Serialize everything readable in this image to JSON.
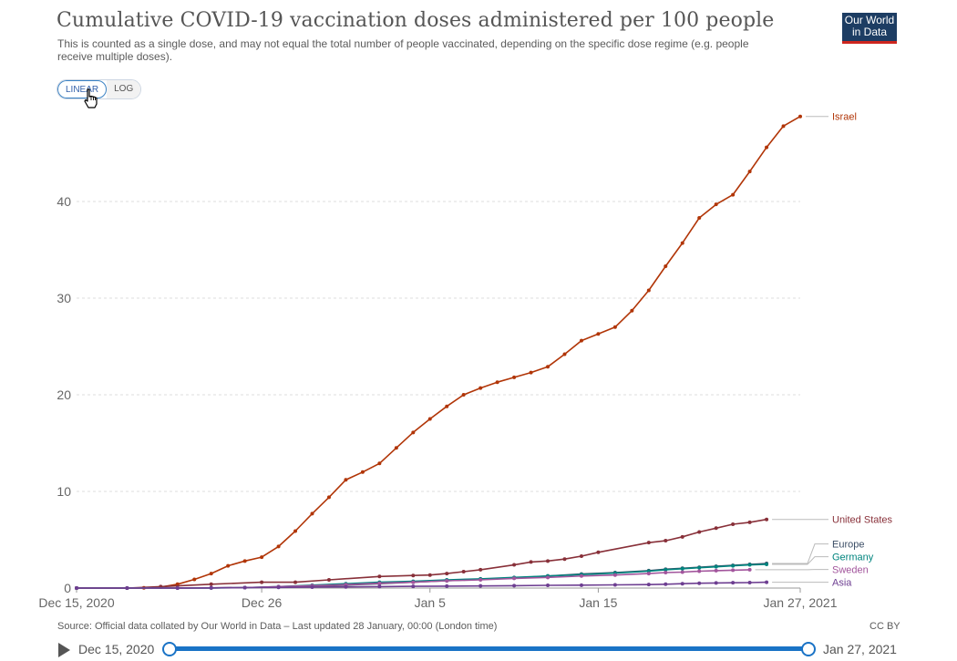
{
  "header": {
    "title": "Cumulative COVID-19 vaccination doses administered per 100 people",
    "subtitle": "This is counted as a single dose, and may not equal the total number of people vaccinated, depending on the specific dose regime (e.g. people receive multiple doses).",
    "logo_line1": "Our World",
    "logo_line2": "in Data",
    "logo_bg": "#1d3d63",
    "logo_accent": "#ce261e"
  },
  "controls": {
    "linear_label": "LINEAR",
    "log_label": "LOG",
    "active_scale": "linear"
  },
  "footer": {
    "source": "Source: Official data collated by Our World in Data – Last updated 28 January, 00:00 (London time)",
    "license": "CC BY"
  },
  "timeline": {
    "start_label": "Dec 15, 2020",
    "end_label": "Jan 27, 2021",
    "play_icon": "play-icon",
    "accent": "#1a73c6"
  },
  "chart_data": {
    "type": "line",
    "title": "Cumulative COVID-19 vaccination doses administered per 100 people",
    "x_start": "2020-12-15",
    "x_end": "2021-01-27",
    "xlim": [
      0,
      43
    ],
    "ylim": [
      0,
      50
    ],
    "y_ticks": [
      0,
      10,
      20,
      30,
      40
    ],
    "x_ticks": [
      {
        "x": 0,
        "label": "Dec 15, 2020"
      },
      {
        "x": 11,
        "label": "Dec 26"
      },
      {
        "x": 21,
        "label": "Jan 5"
      },
      {
        "x": 31,
        "label": "Jan 15"
      },
      {
        "x": 43,
        "label": "Jan 27, 2021"
      }
    ],
    "grid": true,
    "legend": "right, labels at line ends",
    "series": [
      {
        "name": "Israel",
        "color": "#b13507",
        "points": [
          [
            0,
            0
          ],
          [
            3,
            0
          ],
          [
            4,
            0.02
          ],
          [
            5,
            0.1
          ],
          [
            6,
            0.4
          ],
          [
            7,
            0.9
          ],
          [
            8,
            1.5
          ],
          [
            9,
            2.3
          ],
          [
            10,
            2.8
          ],
          [
            11,
            3.2
          ],
          [
            12,
            4.3
          ],
          [
            13,
            5.9
          ],
          [
            14,
            7.7
          ],
          [
            15,
            9.4
          ],
          [
            16,
            11.2
          ],
          [
            17,
            12
          ],
          [
            18,
            12.9
          ],
          [
            19,
            14.5
          ],
          [
            20,
            16.1
          ],
          [
            21,
            17.5
          ],
          [
            22,
            18.8
          ],
          [
            23,
            20
          ],
          [
            24,
            20.7
          ],
          [
            25,
            21.3
          ],
          [
            26,
            21.8
          ],
          [
            27,
            22.3
          ],
          [
            28,
            22.9
          ],
          [
            29,
            24.2
          ],
          [
            30,
            25.6
          ],
          [
            31,
            26.3
          ],
          [
            32,
            27
          ],
          [
            33,
            28.7
          ],
          [
            34,
            30.8
          ],
          [
            35,
            33.3
          ],
          [
            36,
            35.7
          ],
          [
            37,
            38.3
          ],
          [
            38,
            39.7
          ],
          [
            39,
            40.7
          ],
          [
            40,
            43.1
          ],
          [
            41,
            45.6
          ],
          [
            42,
            47.8
          ],
          [
            43,
            48.8
          ]
        ]
      },
      {
        "name": "United States",
        "color": "#883039",
        "points": [
          [
            0,
            0
          ],
          [
            3,
            0
          ],
          [
            5,
            0.15
          ],
          [
            8,
            0.4
          ],
          [
            11,
            0.6
          ],
          [
            13,
            0.6
          ],
          [
            15,
            0.85
          ],
          [
            18,
            1.2
          ],
          [
            20,
            1.3
          ],
          [
            21,
            1.35
          ],
          [
            22,
            1.5
          ],
          [
            23,
            1.7
          ],
          [
            24,
            1.9
          ],
          [
            26,
            2.4
          ],
          [
            27,
            2.7
          ],
          [
            28,
            2.8
          ],
          [
            29,
            3
          ],
          [
            30,
            3.3
          ],
          [
            31,
            3.7
          ],
          [
            34,
            4.7
          ],
          [
            35,
            4.9
          ],
          [
            36,
            5.3
          ],
          [
            37,
            5.8
          ],
          [
            38,
            6.2
          ],
          [
            39,
            6.6
          ],
          [
            40,
            6.8
          ],
          [
            41,
            7.1
          ]
        ]
      },
      {
        "name": "Europe",
        "color": "#3c4e66",
        "points": [
          [
            0,
            0
          ],
          [
            3,
            0
          ],
          [
            6,
            0
          ],
          [
            8,
            0.02
          ],
          [
            10,
            0.05
          ],
          [
            12,
            0.1
          ],
          [
            14,
            0.2
          ],
          [
            16,
            0.3
          ],
          [
            18,
            0.45
          ],
          [
            20,
            0.6
          ],
          [
            22,
            0.75
          ],
          [
            24,
            0.9
          ],
          [
            26,
            1.05
          ],
          [
            28,
            1.25
          ],
          [
            30,
            1.45
          ],
          [
            32,
            1.6
          ],
          [
            34,
            1.8
          ],
          [
            35,
            1.95
          ],
          [
            36,
            2.05
          ],
          [
            37,
            2.15
          ],
          [
            38,
            2.25
          ],
          [
            39,
            2.35
          ],
          [
            40,
            2.45
          ],
          [
            41,
            2.55
          ]
        ]
      },
      {
        "name": "Germany",
        "color": "#00847e",
        "points": [
          [
            0,
            0
          ],
          [
            3,
            0
          ],
          [
            6,
            0
          ],
          [
            8,
            0.01
          ],
          [
            10,
            0.05
          ],
          [
            12,
            0.15
          ],
          [
            14,
            0.3
          ],
          [
            16,
            0.45
          ],
          [
            18,
            0.6
          ],
          [
            20,
            0.7
          ],
          [
            22,
            0.85
          ],
          [
            24,
            0.95
          ],
          [
            26,
            1.1
          ],
          [
            28,
            1.25
          ],
          [
            30,
            1.4
          ],
          [
            32,
            1.55
          ],
          [
            34,
            1.75
          ],
          [
            35,
            1.9
          ],
          [
            36,
            2
          ],
          [
            37,
            2.1
          ],
          [
            38,
            2.2
          ],
          [
            39,
            2.3
          ],
          [
            40,
            2.4
          ],
          [
            41,
            2.45
          ]
        ]
      },
      {
        "name": "Sweden",
        "color": "#a2559c",
        "points": [
          [
            0,
            0
          ],
          [
            3,
            0
          ],
          [
            6,
            0
          ],
          [
            8,
            0.02
          ],
          [
            10,
            0.05
          ],
          [
            12,
            0.15
          ],
          [
            14,
            0.25
          ],
          [
            16,
            0.35
          ],
          [
            18,
            0.5
          ],
          [
            20,
            0.6
          ],
          [
            22,
            0.75
          ],
          [
            24,
            0.85
          ],
          [
            26,
            1
          ],
          [
            28,
            1.1
          ],
          [
            30,
            1.25
          ],
          [
            32,
            1.35
          ],
          [
            34,
            1.5
          ],
          [
            35,
            1.6
          ],
          [
            36,
            1.65
          ],
          [
            37,
            1.75
          ],
          [
            38,
            1.8
          ],
          [
            39,
            1.85
          ],
          [
            40,
            1.9
          ]
        ]
      },
      {
        "name": "Asia",
        "color": "#6d3e91",
        "points": [
          [
            0,
            0
          ],
          [
            3,
            0
          ],
          [
            6,
            0
          ],
          [
            8,
            0.02
          ],
          [
            10,
            0.05
          ],
          [
            12,
            0.07
          ],
          [
            14,
            0.1
          ],
          [
            16,
            0.12
          ],
          [
            18,
            0.15
          ],
          [
            20,
            0.18
          ],
          [
            22,
            0.2
          ],
          [
            24,
            0.22
          ],
          [
            26,
            0.25
          ],
          [
            28,
            0.28
          ],
          [
            30,
            0.3
          ],
          [
            32,
            0.33
          ],
          [
            34,
            0.36
          ],
          [
            35,
            0.4
          ],
          [
            36,
            0.45
          ],
          [
            37,
            0.5
          ],
          [
            38,
            0.53
          ],
          [
            39,
            0.55
          ],
          [
            40,
            0.57
          ],
          [
            41,
            0.6
          ]
        ]
      }
    ]
  }
}
